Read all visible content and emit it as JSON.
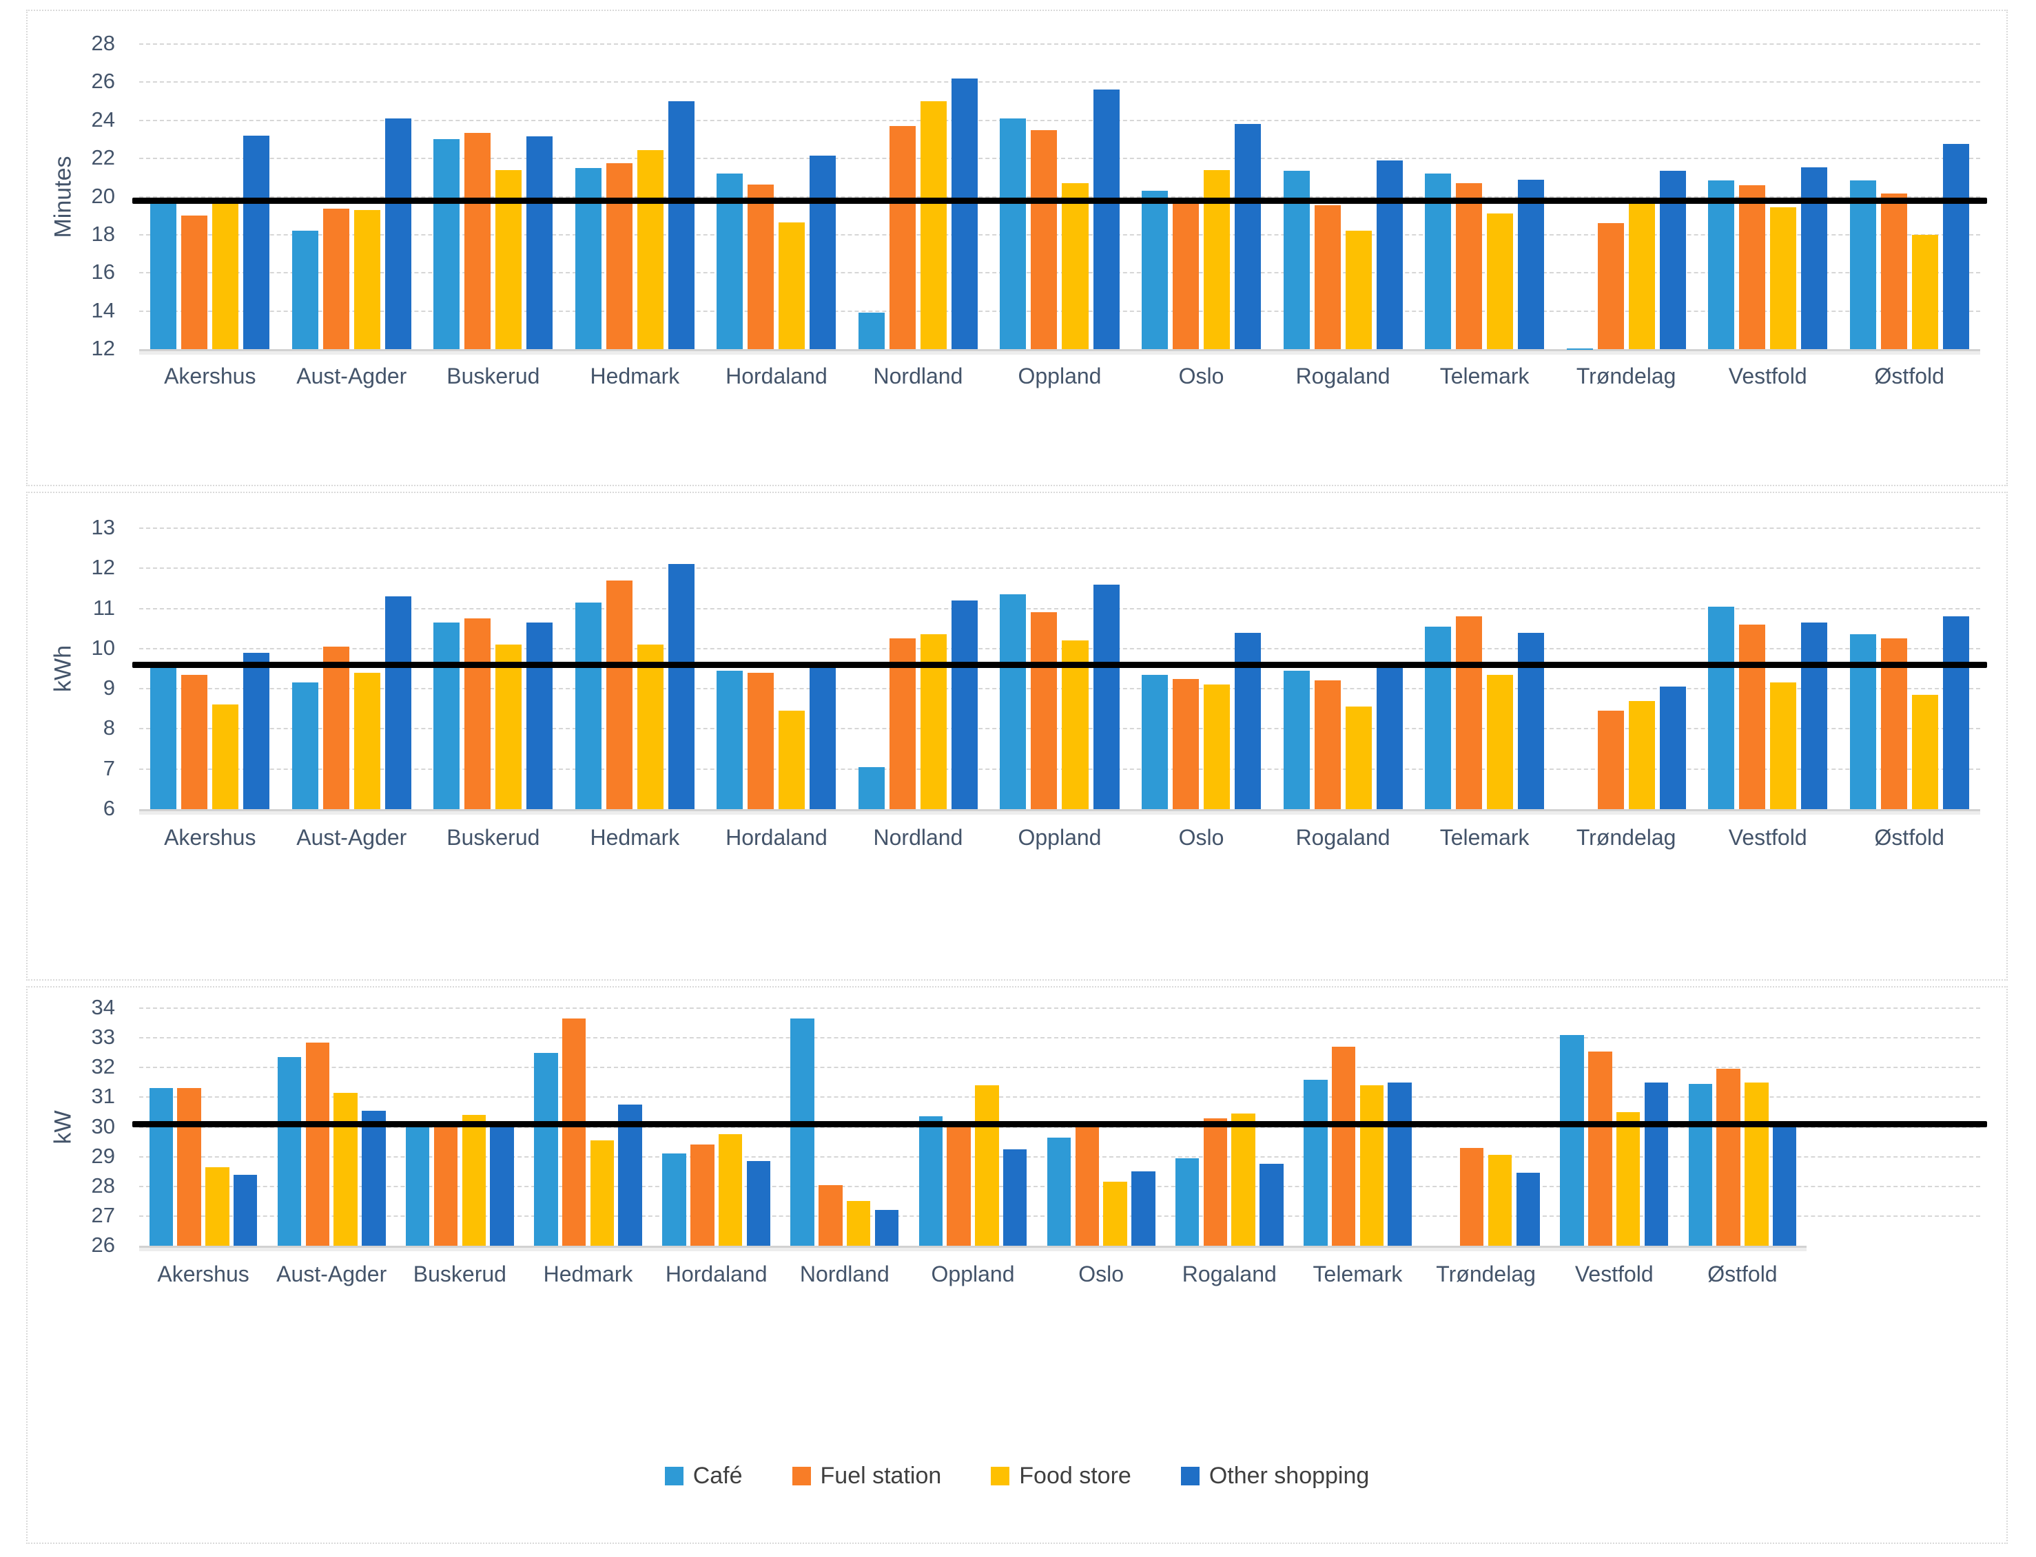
{
  "page": {
    "background": "#ffffff"
  },
  "colors": {
    "cafe": "#2e9ad6",
    "fuel_station": "#f87d27",
    "food_store": "#fec001",
    "other_shopping": "#1f6fc6",
    "reference_line": "#000000",
    "axis_text": "#44546a"
  },
  "legend": {
    "items": [
      {
        "label": "Café",
        "color": "#2e9ad6"
      },
      {
        "label": "Fuel station",
        "color": "#f87d27"
      },
      {
        "label": "Food store",
        "color": "#fec001"
      },
      {
        "label": "Other shopping",
        "color": "#1f6fc6"
      }
    ]
  },
  "chart_data": [
    {
      "type": "bar",
      "title": "",
      "xlabel": "",
      "ylabel": "Minutes",
      "ylim": [
        12,
        28
      ],
      "yticks": [
        28,
        26,
        24,
        22,
        20,
        18,
        16,
        14,
        12
      ],
      "grid": true,
      "legend_position": "none",
      "reference_line": 19.8,
      "categories": [
        "Akershus",
        "Aust-Agder",
        "Buskerud",
        "Hedmark",
        "Hordaland",
        "Nordland",
        "Oppland",
        "Oslo",
        "Rogaland",
        "Telemark",
        "Trøndelag",
        "Vestfold",
        "Østfold"
      ],
      "series": [
        {
          "name": "Café",
          "color": "#2e9ad6",
          "values": [
            19.7,
            18.2,
            23.0,
            21.5,
            21.2,
            13.9,
            24.1,
            20.3,
            21.35,
            21.2,
            12.05,
            20.85,
            20.85
          ]
        },
        {
          "name": "Fuel station",
          "color": "#f87d27",
          "values": [
            19.0,
            19.35,
            23.35,
            21.75,
            20.65,
            23.7,
            23.5,
            19.7,
            19.55,
            20.7,
            18.6,
            20.6,
            20.15
          ]
        },
        {
          "name": "Food store",
          "color": "#fec001",
          "values": [
            19.7,
            19.3,
            21.4,
            22.45,
            18.65,
            25.0,
            20.7,
            21.4,
            18.2,
            19.1,
            19.7,
            19.45,
            18.0
          ]
        },
        {
          "name": "Other shopping",
          "color": "#1f6fc6",
          "values": [
            23.2,
            24.1,
            23.15,
            25.0,
            22.15,
            26.2,
            25.6,
            23.8,
            21.9,
            20.9,
            21.35,
            21.55,
            22.75
          ]
        }
      ]
    },
    {
      "type": "bar",
      "title": "",
      "xlabel": "",
      "ylabel": "kWh",
      "ylim": [
        6,
        13
      ],
      "yticks": [
        13,
        12,
        11,
        10,
        9,
        8,
        7,
        6
      ],
      "grid": true,
      "legend_position": "none",
      "reference_line": 9.6,
      "categories": [
        "Akershus",
        "Aust-Agder",
        "Buskerud",
        "Hedmark",
        "Hordaland",
        "Nordland",
        "Oppland",
        "Oslo",
        "Rogaland",
        "Telemark",
        "Trøndelag",
        "Vestfold",
        "Østfold"
      ],
      "series": [
        {
          "name": "Café",
          "color": "#2e9ad6",
          "values": [
            9.65,
            9.15,
            10.65,
            11.15,
            9.45,
            7.05,
            11.35,
            9.35,
            9.45,
            10.55,
            null,
            11.05,
            10.35
          ]
        },
        {
          "name": "Fuel station",
          "color": "#f87d27",
          "values": [
            9.35,
            10.05,
            10.75,
            11.7,
            9.4,
            10.25,
            10.9,
            9.25,
            9.2,
            10.8,
            8.45,
            10.6,
            10.25
          ]
        },
        {
          "name": "Food store",
          "color": "#fec001",
          "values": [
            8.6,
            9.4,
            10.1,
            10.1,
            8.45,
            10.35,
            10.2,
            9.1,
            8.55,
            9.35,
            8.7,
            9.15,
            8.85
          ]
        },
        {
          "name": "Other shopping",
          "color": "#1f6fc6",
          "values": [
            9.9,
            11.3,
            10.65,
            12.1,
            9.65,
            11.2,
            11.6,
            10.4,
            9.6,
            10.4,
            9.05,
            10.65,
            10.8
          ]
        }
      ]
    },
    {
      "type": "bar",
      "title": "",
      "xlabel": "",
      "ylabel": "kW",
      "ylim": [
        26,
        34
      ],
      "yticks": [
        34,
        33,
        32,
        31,
        30,
        29,
        28,
        27,
        26
      ],
      "grid": true,
      "legend_position": "bottom",
      "reference_line": 30.1,
      "categories": [
        "Akershus",
        "Aust-Agder",
        "Buskerud",
        "Hedmark",
        "Hordaland",
        "Nordland",
        "Oppland",
        "Oslo",
        "Rogaland",
        "Telemark",
        "Trøndelag",
        "Vestfold",
        "Østfold"
      ],
      "series": [
        {
          "name": "Café",
          "color": "#2e9ad6",
          "values": [
            31.3,
            32.35,
            30.05,
            32.5,
            29.1,
            33.65,
            30.35,
            29.65,
            28.95,
            31.6,
            null,
            33.1,
            31.45
          ]
        },
        {
          "name": "Fuel station",
          "color": "#f87d27",
          "values": [
            31.3,
            32.85,
            30.05,
            33.65,
            29.4,
            28.05,
            30.1,
            30.1,
            30.3,
            32.7,
            29.3,
            32.55,
            31.95
          ]
        },
        {
          "name": "Food store",
          "color": "#fec001",
          "values": [
            28.65,
            31.15,
            30.4,
            29.55,
            29.75,
            27.5,
            31.4,
            28.15,
            30.45,
            31.4,
            29.05,
            30.5,
            31.5
          ]
        },
        {
          "name": "Other shopping",
          "color": "#1f6fc6",
          "values": [
            28.4,
            30.55,
            30.05,
            30.75,
            28.85,
            27.2,
            29.25,
            28.5,
            28.75,
            31.5,
            28.45,
            31.5,
            30.1
          ]
        }
      ]
    }
  ]
}
